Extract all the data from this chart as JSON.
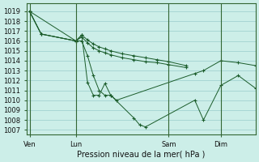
{
  "title": "Pression niveau de la mer( hPa )",
  "yticks": [
    1007,
    1008,
    1009,
    1010,
    1011,
    1012,
    1013,
    1014,
    1015,
    1016,
    1017,
    1018,
    1019
  ],
  "ylim": [
    1006.5,
    1019.8
  ],
  "bg_color": "#cceee8",
  "grid_color": "#99cccc",
  "line_color": "#1a5c2a",
  "xtick_labels": [
    "Ven",
    "Lun",
    "Sam",
    "Dim"
  ],
  "xtick_positions": [
    0,
    16,
    48,
    66
  ],
  "xlim": [
    -1,
    78
  ],
  "vline_color": "#336633",
  "series_x": [
    [
      0,
      4,
      16,
      18,
      20,
      22,
      24,
      26,
      28,
      30,
      57,
      60,
      66,
      72,
      78
    ],
    [
      0,
      4,
      16,
      18,
      20,
      22,
      24,
      26,
      28,
      32,
      36,
      40,
      44,
      48,
      54
    ],
    [
      0,
      4,
      16,
      18,
      20,
      22,
      24,
      26,
      28,
      32,
      36,
      40,
      44,
      48,
      54
    ],
    [
      0,
      16,
      18,
      20,
      22,
      24,
      26,
      28,
      36,
      38,
      40,
      57,
      60,
      66,
      72,
      78
    ]
  ],
  "series_y": [
    [
      1019.0,
      1016.7,
      1016.0,
      1016.0,
      1014.5,
      1012.5,
      1011.0,
      1010.5,
      1010.5,
      1010.0,
      1012.7,
      1013.0,
      1014.0,
      1013.8,
      1013.5
    ],
    [
      1019.0,
      1016.7,
      1016.0,
      1016.6,
      1016.1,
      1015.7,
      1015.4,
      1015.2,
      1015.0,
      1014.7,
      1014.5,
      1014.3,
      1014.1,
      1013.9,
      1013.5
    ],
    [
      1019.0,
      1016.7,
      1016.0,
      1016.4,
      1015.8,
      1015.3,
      1015.0,
      1014.8,
      1014.6,
      1014.3,
      1014.1,
      1013.9,
      1013.8,
      1013.6,
      1013.3
    ],
    [
      1019.0,
      1016.0,
      1016.6,
      1011.8,
      1010.5,
      1010.5,
      1011.7,
      1010.5,
      1008.2,
      1007.5,
      1007.3,
      1010.0,
      1008.0,
      1011.5,
      1012.5,
      1011.2
    ]
  ],
  "vlines_x": [
    0,
    16,
    48,
    66
  ]
}
